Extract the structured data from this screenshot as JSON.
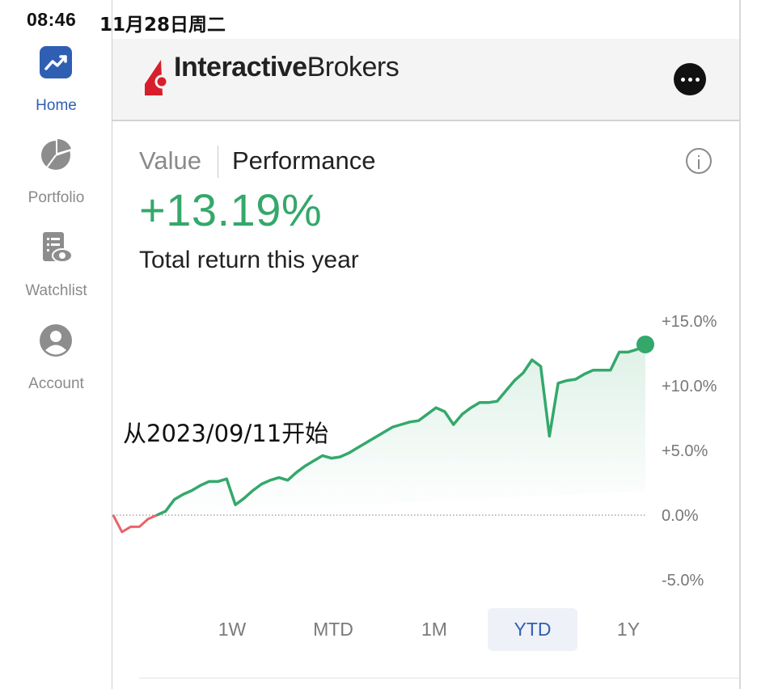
{
  "status_bar": {
    "time": "08:46",
    "date": "11月28日周二"
  },
  "sidebar": {
    "items": [
      {
        "label": "Home",
        "icon": "trend-chart-icon",
        "active": true
      },
      {
        "label": "Portfolio",
        "icon": "pie-chart-icon",
        "active": false
      },
      {
        "label": "Watchlist",
        "icon": "watchlist-icon",
        "active": false
      },
      {
        "label": "Account",
        "icon": "user-icon",
        "active": false
      }
    ]
  },
  "header": {
    "brand_bold": "Interactive",
    "brand_regular": "Brokers",
    "logo_color": "#d81e2a"
  },
  "tabs": {
    "value": "Value",
    "performance": "Performance",
    "active": "Performance"
  },
  "summary": {
    "return_value": "+13.19%",
    "caption": "Total return this year"
  },
  "annotation": "从2023/09/11开始",
  "chart_data": {
    "type": "line",
    "title": "",
    "xlabel": "",
    "ylabel": "",
    "ylim": [
      -5,
      15
    ],
    "y_ticks": [
      "+15.0%",
      "+10.0%",
      "+5.0%",
      "0.0%",
      "-5.0%"
    ],
    "baseline": 0,
    "grid": false,
    "positive_color": "#34a86b",
    "negative_color": "#e8646a",
    "values": [
      0.0,
      -1.3,
      -0.9,
      -0.9,
      -0.3,
      0.0,
      0.3,
      1.2,
      1.6,
      1.9,
      2.3,
      2.6,
      2.6,
      2.8,
      0.8,
      1.3,
      1.9,
      2.4,
      2.7,
      2.9,
      2.7,
      3.3,
      3.8,
      4.2,
      4.6,
      4.4,
      4.5,
      4.8,
      5.2,
      5.6,
      6.0,
      6.4,
      6.8,
      7.0,
      7.2,
      7.3,
      7.8,
      8.3,
      8.0,
      7.0,
      7.8,
      8.3,
      8.7,
      8.7,
      8.8,
      9.6,
      10.4,
      11.0,
      12.0,
      11.5,
      6.1,
      10.2,
      10.4,
      10.5,
      10.9,
      11.2,
      11.2,
      11.2,
      12.6,
      12.6,
      12.8,
      13.19
    ]
  },
  "range_tabs": [
    {
      "label": "1W",
      "active": false
    },
    {
      "label": "MTD",
      "active": false
    },
    {
      "label": "1M",
      "active": false
    },
    {
      "label": "YTD",
      "active": true
    },
    {
      "label": "1Y",
      "active": false
    }
  ]
}
